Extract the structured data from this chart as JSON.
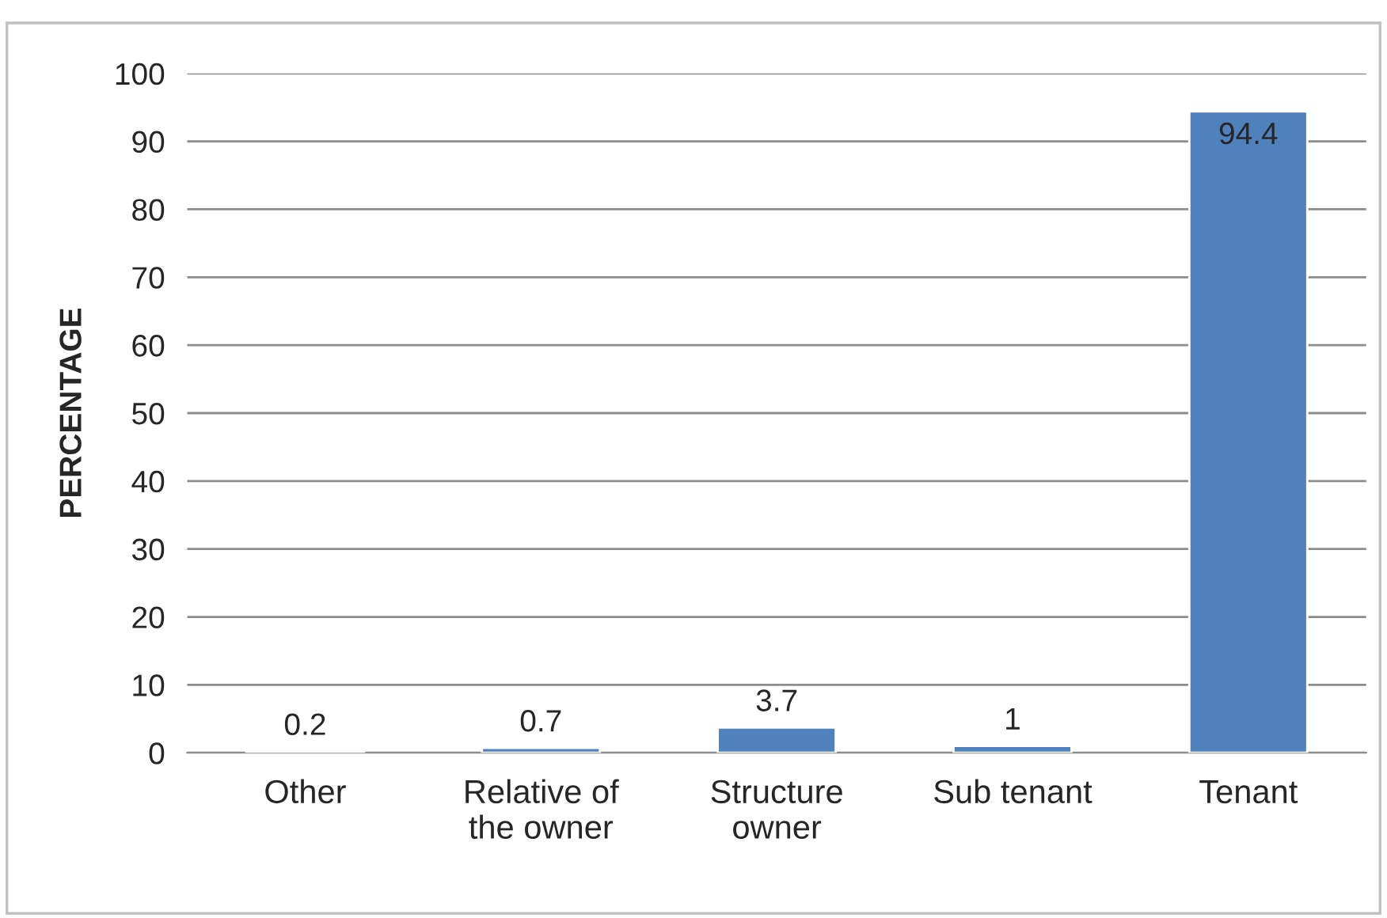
{
  "chart_data": {
    "type": "bar",
    "ylabel": "PERCENTAGE",
    "categories": [
      "Other",
      "Relative of\nthe owner",
      "Structure\nowner",
      "Sub tenant",
      "Tenant"
    ],
    "values": [
      0.2,
      0.7,
      3.7,
      1,
      94.4
    ],
    "color": "#4f81bd",
    "ylim": [
      0,
      100
    ],
    "yticks": [
      0,
      10,
      20,
      30,
      40,
      50,
      60,
      70,
      80,
      90,
      100
    ],
    "grid": "y",
    "data_labels": true
  }
}
